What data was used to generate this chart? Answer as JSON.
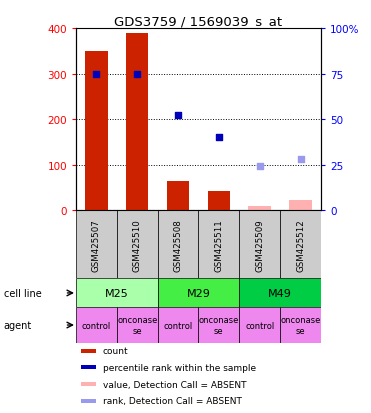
{
  "title": "GDS3759 / 1569039_s_at",
  "samples": [
    "GSM425507",
    "GSM425510",
    "GSM425508",
    "GSM425511",
    "GSM425509",
    "GSM425512"
  ],
  "count_values": [
    350,
    388,
    65,
    42,
    8,
    22
  ],
  "count_absent": [
    false,
    false,
    false,
    false,
    true,
    true
  ],
  "rank_values": [
    75,
    75,
    52,
    40,
    24,
    28
  ],
  "rank_absent": [
    false,
    false,
    false,
    false,
    true,
    true
  ],
  "ylim_left": [
    0,
    400
  ],
  "ylim_right": [
    0,
    100
  ],
  "yticks_left": [
    0,
    100,
    200,
    300,
    400
  ],
  "yticks_right": [
    0,
    25,
    50,
    75,
    100
  ],
  "ytick_labels_right": [
    "0",
    "25",
    "50",
    "75",
    "100%"
  ],
  "cell_line_groups": [
    {
      "label": "M25",
      "cols": [
        0,
        1
      ],
      "color": "#aaffaa"
    },
    {
      "label": "M29",
      "cols": [
        2,
        3
      ],
      "color": "#44ee44"
    },
    {
      "label": "M49",
      "cols": [
        4,
        5
      ],
      "color": "#00cc44"
    }
  ],
  "agent_labels": [
    "control",
    "onconase\nse",
    "control",
    "onconase\nse",
    "control",
    "onconase\nse"
  ],
  "agent_color": "#ee88ee",
  "sample_box_color": "#cccccc",
  "bar_color_present": "#cc2200",
  "bar_color_absent": "#ffb0b0",
  "dot_color_present": "#0000bb",
  "dot_color_absent": "#9999ee",
  "legend_items": [
    {
      "label": "count",
      "color": "#cc2200"
    },
    {
      "label": "percentile rank within the sample",
      "color": "#0000bb"
    },
    {
      "label": "value, Detection Call = ABSENT",
      "color": "#ffb0b0"
    },
    {
      "label": "rank, Detection Call = ABSENT",
      "color": "#9999ee"
    }
  ]
}
